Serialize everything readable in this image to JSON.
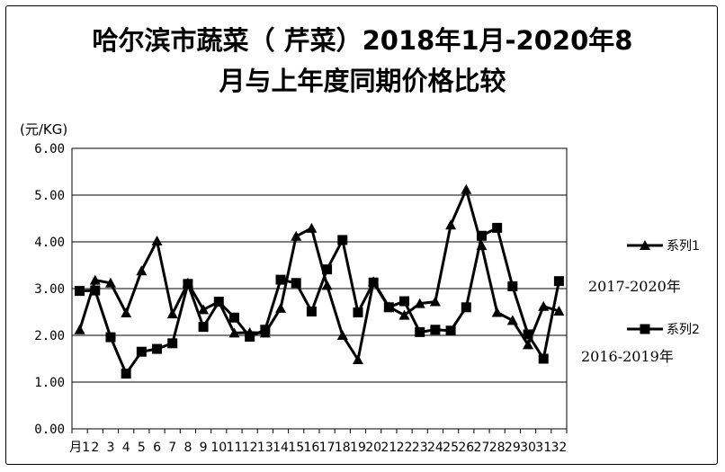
{
  "chart_data": {
    "type": "line",
    "title_line1": "哈尔滨市蔬菜（ 芹菜）2018年1月-2020年8",
    "title_line2": "月与上年度同期价格比较",
    "ylabel": "(元/KG)",
    "ylim": [
      0,
      6
    ],
    "yticks": [
      "0.00",
      "1.00",
      "2.00",
      "3.00",
      "4.00",
      "5.00",
      "6.00"
    ],
    "x_first_label": "月1",
    "categories": [
      "1",
      "2",
      "3",
      "4",
      "5",
      "6",
      "7",
      "8",
      "9",
      "10",
      "11",
      "12",
      "13",
      "14",
      "15",
      "16",
      "17",
      "18",
      "19",
      "20",
      "21",
      "22",
      "23",
      "24",
      "25",
      "26",
      "27",
      "28",
      "29",
      "30",
      "31",
      "32"
    ],
    "grid": true,
    "legend_position": "right",
    "series": [
      {
        "name": "系列1",
        "marker": "triangle",
        "note": "2017-2020年",
        "values": [
          2.12,
          3.18,
          3.12,
          2.48,
          3.38,
          4.02,
          2.46,
          3.12,
          2.55,
          2.72,
          2.05,
          2.06,
          2.05,
          2.58,
          4.12,
          4.29,
          3.07,
          2.0,
          1.48,
          3.15,
          2.61,
          2.43,
          2.68,
          2.72,
          4.36,
          5.12,
          3.92,
          2.49,
          2.32,
          1.8,
          2.62,
          2.52
        ]
      },
      {
        "name": "系列2",
        "marker": "square",
        "note": "2016-2019年",
        "values": [
          2.95,
          2.96,
          1.96,
          1.18,
          1.65,
          1.71,
          1.83,
          3.1,
          2.18,
          2.72,
          2.38,
          1.97,
          2.12,
          3.19,
          3.12,
          2.51,
          3.41,
          4.04,
          2.49,
          3.13,
          2.6,
          2.73,
          2.07,
          2.12,
          2.1,
          2.6,
          4.13,
          4.3,
          3.05,
          2.02,
          1.5,
          3.16
        ]
      }
    ]
  }
}
